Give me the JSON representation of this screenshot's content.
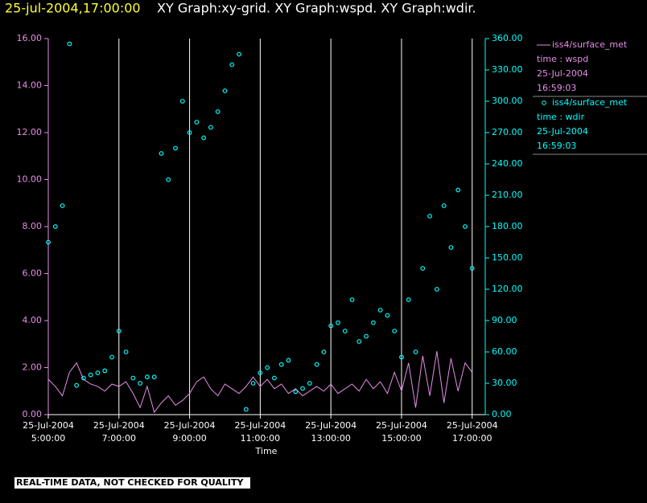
{
  "chart_data": {
    "type": "line-scatter",
    "title": "25-jul-2004,17:00:00",
    "subtitle": "XY Graph:xy-grid.  XY Graph:wspd.  XY Graph:wdir.",
    "x_label": "Time",
    "footer": "REAL-TIME DATA, NOT CHECKED FOR QUALITY",
    "xlim": [
      5,
      17.37
    ],
    "xticks": [
      {
        "value": 5,
        "label": "25-Jul-2004 5:00:00"
      },
      {
        "value": 7,
        "label": "25-Jul-2004 7:00:00"
      },
      {
        "value": 9,
        "label": "25-Jul-2004 9:00:00"
      },
      {
        "value": 11,
        "label": "25-Jul-2004 11:00:00"
      },
      {
        "value": 13,
        "label": "25-Jul-2004 13:00:00"
      },
      {
        "value": 15,
        "label": "25-Jul-2004 15:00:00"
      },
      {
        "value": 17,
        "label": "25-Jul-2004 17:00:00"
      }
    ],
    "ylim": [
      0,
      16
    ],
    "yticks": [
      {
        "value": 0,
        "label": "0.00"
      },
      {
        "value": 2,
        "label": "2.00"
      },
      {
        "value": 4,
        "label": "4.00"
      },
      {
        "value": 6,
        "label": "6.00"
      },
      {
        "value": 8,
        "label": "8.00"
      },
      {
        "value": 10,
        "label": "10.00"
      },
      {
        "value": 12,
        "label": "12.00"
      },
      {
        "value": 14,
        "label": "14.00"
      },
      {
        "value": 16,
        "label": "16.00"
      }
    ],
    "y2lim": [
      0,
      360
    ],
    "y2ticks": [
      {
        "value": 0,
        "label": "0.00"
      },
      {
        "value": 30,
        "label": "30.00"
      },
      {
        "value": 60,
        "label": "60.00"
      },
      {
        "value": 90,
        "label": "90.00"
      },
      {
        "value": 120,
        "label": "120.00"
      },
      {
        "value": 150,
        "label": "150.00"
      },
      {
        "value": 180,
        "label": "180.00"
      },
      {
        "value": 210,
        "label": "210.00"
      },
      {
        "value": 240,
        "label": "240.00"
      },
      {
        "value": 270,
        "label": "270.00"
      },
      {
        "value": 300,
        "label": "300.00"
      },
      {
        "value": 330,
        "label": "330.00"
      },
      {
        "value": 360,
        "label": "360.00"
      }
    ],
    "grid": true,
    "x": [
      5.0,
      5.2,
      5.4,
      5.6,
      5.8,
      6.0,
      6.2,
      6.4,
      6.6,
      6.8,
      7.0,
      7.2,
      7.4,
      7.6,
      7.8,
      8.0,
      8.2,
      8.4,
      8.6,
      8.8,
      9.0,
      9.2,
      9.4,
      9.6,
      9.8,
      10.0,
      10.2,
      10.4,
      10.6,
      10.8,
      11.0,
      11.2,
      11.4,
      11.6,
      11.8,
      12.0,
      12.2,
      12.4,
      12.6,
      12.8,
      13.0,
      13.2,
      13.4,
      13.6,
      13.8,
      14.0,
      14.2,
      14.4,
      14.6,
      14.8,
      15.0,
      15.2,
      15.4,
      15.6,
      15.8,
      16.0,
      16.2,
      16.4,
      16.6,
      16.8,
      17.0
    ],
    "series": [
      {
        "name": "iss4/surface_met",
        "legend_details": [
          "time : wspd",
          "25-Jul-2004",
          "16:59:03"
        ],
        "color": "#e58ee5",
        "style": "line",
        "values": [
          1.5,
          1.2,
          0.8,
          1.8,
          2.2,
          1.5,
          1.3,
          1.2,
          1.0,
          1.3,
          1.2,
          1.4,
          0.9,
          0.3,
          1.2,
          0.1,
          0.5,
          0.8,
          0.4,
          0.6,
          0.9,
          1.4,
          1.6,
          1.1,
          0.8,
          1.3,
          1.1,
          0.9,
          1.2,
          1.6,
          1.2,
          1.5,
          1.1,
          1.3,
          0.9,
          1.1,
          0.8,
          1.0,
          1.2,
          1.0,
          1.3,
          0.9,
          1.1,
          1.3,
          1.0,
          1.5,
          1.1,
          1.4,
          0.9,
          1.8,
          1.0,
          2.2,
          0.3,
          2.5,
          0.8,
          2.7,
          0.5,
          2.4,
          1.0,
          2.2,
          1.8
        ]
      },
      {
        "name": "iss4/surface_met",
        "legend_details": [
          "time : wdir",
          "25-Jul-2004",
          "16:59:03"
        ],
        "color": "#00ffff",
        "style": "scatter",
        "axis": "y2",
        "values": [
          165,
          180,
          200,
          355,
          28,
          35,
          38,
          40,
          42,
          55,
          80,
          60,
          35,
          30,
          36,
          36,
          250,
          225,
          255,
          300,
          270,
          280,
          265,
          275,
          290,
          310,
          335,
          345,
          5,
          30,
          40,
          45,
          35,
          48,
          52,
          22,
          25,
          30,
          48,
          60,
          85,
          88,
          80,
          110,
          70,
          75,
          88,
          100,
          95,
          80,
          55,
          110,
          60,
          140,
          190,
          120,
          200,
          160,
          215,
          180,
          140
        ]
      }
    ]
  }
}
